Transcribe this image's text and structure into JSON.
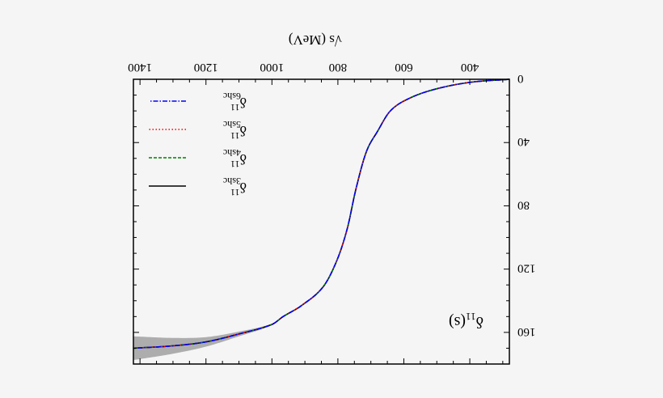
{
  "chart_data": {
    "type": "line",
    "xlabel": "√s (MeV)",
    "annotation": {
      "main": "δ",
      "sub": "11",
      "tail": "(s)"
    },
    "xlim": [
      280,
      1420
    ],
    "ylim": [
      0,
      180
    ],
    "xticks": [
      400,
      600,
      800,
      1000,
      1200,
      1400
    ],
    "yticks": [
      0,
      40,
      80,
      120,
      160
    ],
    "grid": false,
    "legend_placement": "bottom-right",
    "orientation_note": "",
    "x": [
      280,
      398,
      502,
      583,
      641,
      680,
      714,
      746,
      771,
      802,
      844,
      910,
      966,
      1000,
      1100,
      1200,
      1300,
      1420
    ],
    "band_halfwidth": [
      0,
      0,
      0,
      0,
      0,
      0,
      0,
      0,
      0,
      0,
      0,
      0,
      0.3,
      0.5,
      1.5,
      3,
      5,
      7.5
    ],
    "series": [
      {
        "name": "δ11 3shc",
        "label_main": "δ",
        "label_sup": "11",
        "label_sub": "3shc",
        "color": "#000000",
        "dash": "solid",
        "values": [
          0,
          1.9,
          6.1,
          12,
          20,
          33,
          46,
          70,
          94,
          114,
          131,
          143,
          150,
          155,
          161,
          166,
          168.5,
          170
        ]
      },
      {
        "name": "δ11 4shc",
        "label_main": "δ",
        "label_sup": "11",
        "label_sub": "4shc",
        "color": "#008000",
        "dash": "dashed",
        "values": [
          0,
          1.9,
          6.1,
          12,
          20,
          33,
          46,
          70,
          94,
          114,
          131,
          143,
          150,
          155,
          161,
          166,
          168.5,
          170
        ]
      },
      {
        "name": "δ11 5shc",
        "label_main": "δ",
        "label_sup": "11",
        "label_sub": "5shc",
        "color": "#ff0000",
        "dash": "dotted",
        "values": [
          0,
          1.9,
          6.1,
          12,
          20,
          33,
          46,
          70,
          94,
          114,
          131,
          143,
          150,
          155,
          161,
          166,
          168.5,
          170
        ]
      },
      {
        "name": "δ11 6shc",
        "label_main": "δ",
        "label_sup": "11",
        "label_sub": "6shc",
        "color": "#0000ff",
        "dash": "dash-dot",
        "values": [
          0,
          1.9,
          6.1,
          12,
          20,
          33,
          46,
          70,
          94,
          114,
          131,
          143,
          150,
          155,
          161,
          166,
          168.5,
          170
        ]
      }
    ],
    "band_color": "#a0a0a0"
  }
}
